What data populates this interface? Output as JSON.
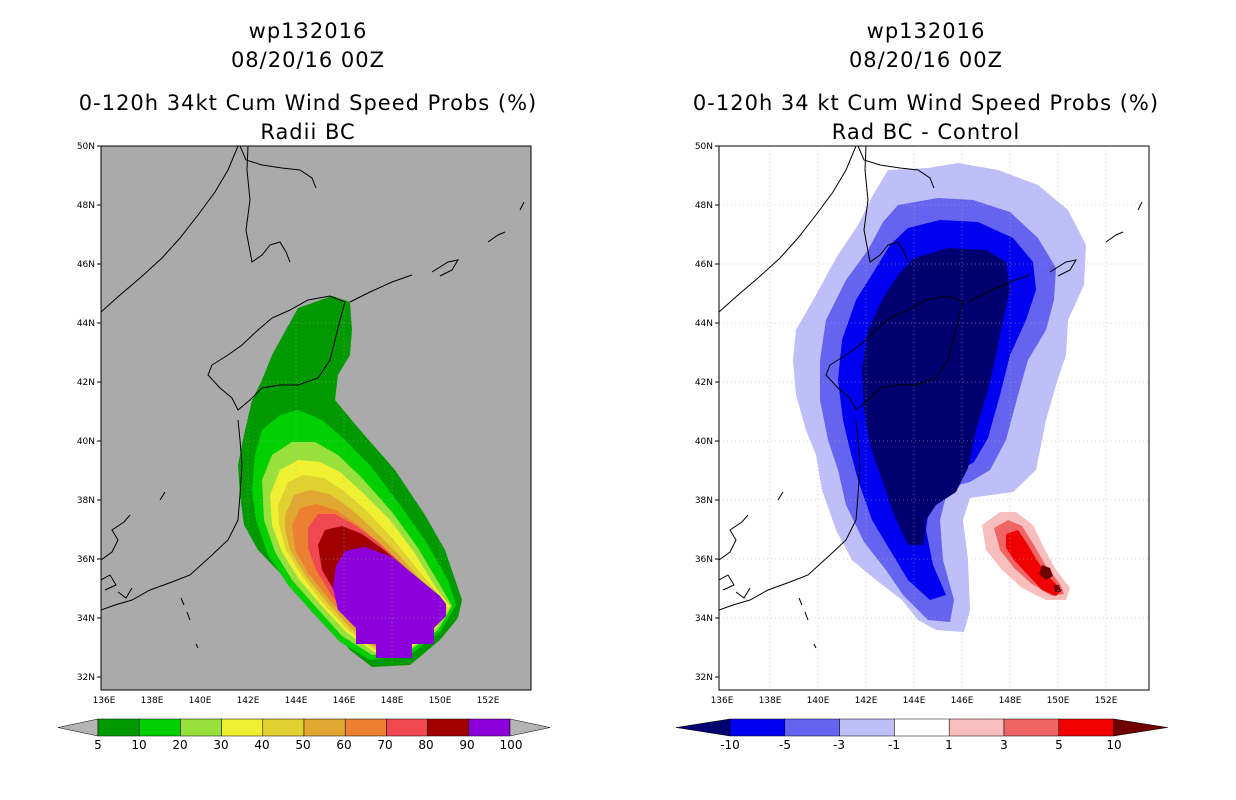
{
  "left_panel": {
    "title_lines": [
      "wp132016",
      "08/20/16 00Z",
      "0-120h 34kt Cum Wind Speed Probs (%)",
      "Radii BC"
    ],
    "lat_labels": [
      "50N",
      "48N",
      "46N",
      "44N",
      "42N",
      "40N",
      "38N",
      "36N",
      "34N",
      "32N"
    ],
    "lon_labels": [
      "136E",
      "138E",
      "140E",
      "142E",
      "144E",
      "146E",
      "148E",
      "150E",
      "152E"
    ],
    "colorbar": {
      "colors": [
        "#009a00",
        "#00d000",
        "#98e03c",
        "#f0f032",
        "#e0d030",
        "#e0a830",
        "#ec8030",
        "#f04850",
        "#a00000",
        "#8c00dc"
      ],
      "labels": [
        "5",
        "10",
        "20",
        "30",
        "40",
        "50",
        "60",
        "70",
        "80",
        "90",
        "100"
      ],
      "under_color": "#b4b4b4",
      "over_color": "#b4b4b4"
    }
  },
  "right_panel": {
    "title_lines": [
      "wp132016",
      "08/20/16 00Z",
      "0-120h 34 kt Cum Wind Speed Probs (%)",
      "Rad BC - Control"
    ],
    "lat_labels": [
      "50N",
      "48N",
      "46N",
      "44N",
      "42N",
      "40N",
      "38N",
      "36N",
      "34N",
      "32N"
    ],
    "lon_labels": [
      "136E",
      "138E",
      "140E",
      "142E",
      "144E",
      "146E",
      "148E",
      "150E",
      "152E"
    ],
    "colorbar": {
      "colors": [
        "#0000f0",
        "#6464f0",
        "#bebef8",
        "#ffffff",
        "#f8bebe",
        "#f06464",
        "#f00000"
      ],
      "labels": [
        "-10",
        "-5",
        "-3",
        "-1",
        "1",
        "3",
        "5",
        "10"
      ],
      "under_color": "#000070",
      "over_color": "#700000"
    }
  },
  "map_colors": {
    "land_background": "#aaaaaa",
    "coastline": "#000000",
    "grid": "#b0b0b0"
  }
}
